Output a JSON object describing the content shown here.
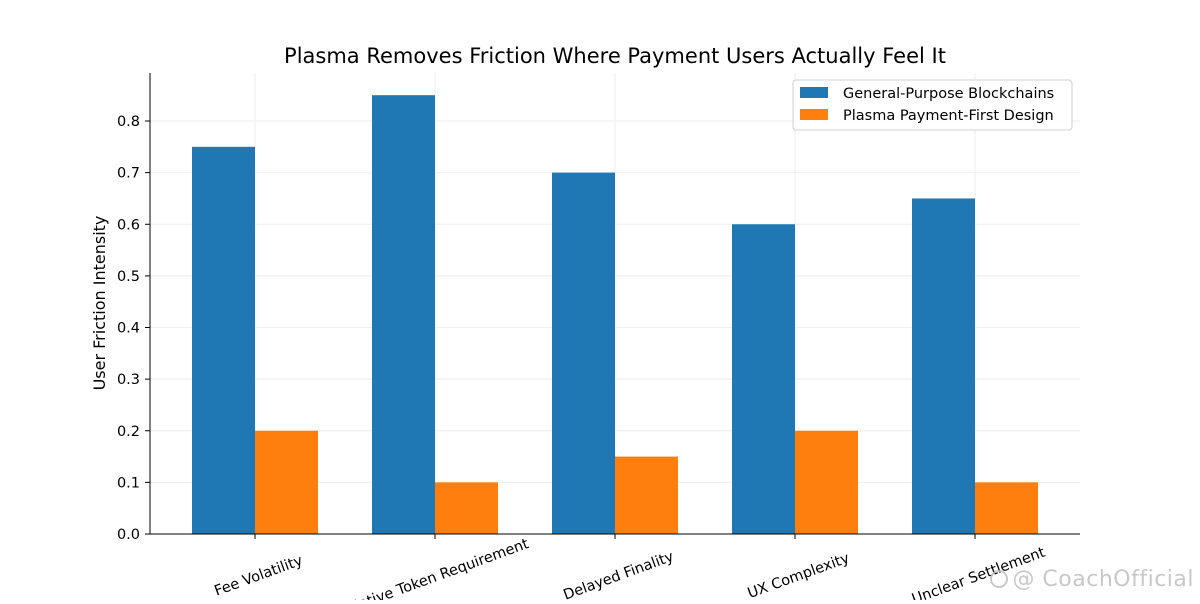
{
  "chart_data": {
    "type": "bar",
    "title": "Plasma Removes Friction Where Payment Users Actually Feel It",
    "ylabel": "User Friction Intensity",
    "xlabel": "",
    "categories": [
      "Fee Volatility",
      "Native Token Requirement",
      "Delayed Finality",
      "UX Complexity",
      "Unclear Settlement"
    ],
    "series": [
      {
        "name": "General-Purpose Blockchains",
        "color": "#1f77b4",
        "values": [
          0.75,
          0.85,
          0.7,
          0.6,
          0.65
        ]
      },
      {
        "name": "Plasma Payment-First Design",
        "color": "#ff7f0e",
        "values": [
          0.2,
          0.1,
          0.15,
          0.2,
          0.1
        ]
      }
    ],
    "ylim": [
      0,
      0.893
    ],
    "yticks": [
      "0.0",
      "0.1",
      "0.2",
      "0.3",
      "0.4",
      "0.5",
      "0.6",
      "0.7",
      "0.8"
    ],
    "grid": true,
    "legend_position": "top-right"
  },
  "watermark": {
    "text": "@ CoachOfficial"
  }
}
